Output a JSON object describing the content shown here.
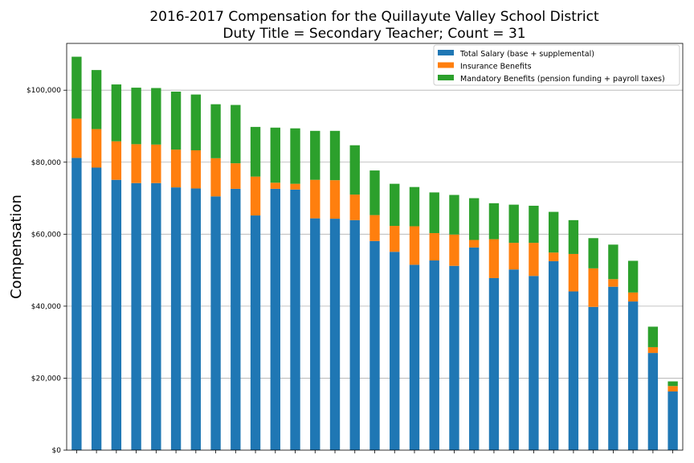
{
  "chart_data": {
    "type": "bar",
    "stacked": true,
    "title": "2016-2017 Compensation for the Quillayute Valley School District",
    "subtitle": "Duty Title = Secondary Teacher; Count = 31",
    "xlabel": "",
    "ylabel": "Compensation",
    "ylim": [
      0,
      113000
    ],
    "yticks": [
      0,
      20000,
      40000,
      60000,
      80000,
      100000
    ],
    "ytick_labels": [
      "$0",
      "$20,000",
      "$40,000",
      "$60,000",
      "$80,000",
      "$100,000"
    ],
    "grid": "horizontal",
    "legend_position": "top-right",
    "series": [
      {
        "name": "Total Salary (base + supplemental)",
        "color": "#1f77b4",
        "values": [
          81200,
          78500,
          75100,
          74200,
          74200,
          73000,
          72700,
          70500,
          72600,
          65200,
          72600,
          72400,
          64400,
          64300,
          63900,
          58100,
          55100,
          51500,
          52700,
          51200,
          56300,
          47800,
          50200,
          48400,
          52500,
          44100,
          39800,
          45400,
          41300,
          27000,
          16300
        ]
      },
      {
        "name": "Insurance Benefits",
        "color": "#ff7f0e",
        "values": [
          10900,
          10700,
          10700,
          10800,
          10700,
          10500,
          10600,
          10600,
          7100,
          10800,
          1700,
          1600,
          10700,
          10700,
          7100,
          7200,
          7200,
          10700,
          7600,
          8700,
          2100,
          10800,
          7400,
          9200,
          2400,
          10400,
          10700,
          2100,
          2500,
          1600,
          1500
        ]
      },
      {
        "name": "Mandatory Benefits (pension funding + payroll taxes)",
        "color": "#2ca02c",
        "values": [
          17200,
          16400,
          15800,
          15700,
          15700,
          16100,
          15500,
          15000,
          16200,
          13800,
          15300,
          15400,
          13600,
          13700,
          13700,
          12400,
          11700,
          10900,
          11300,
          11000,
          11600,
          10000,
          10600,
          10300,
          11300,
          9400,
          8400,
          9600,
          8800,
          5700,
          1300
        ]
      }
    ]
  }
}
